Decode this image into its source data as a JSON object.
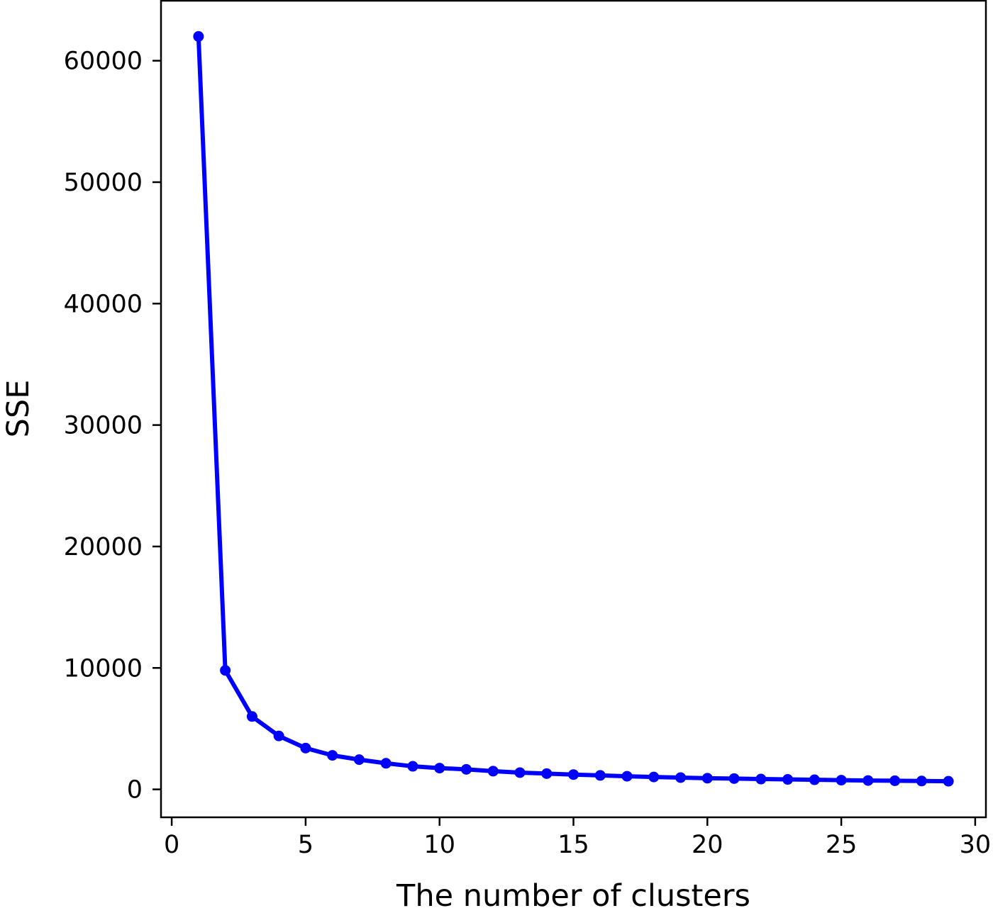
{
  "chart_data": {
    "type": "line",
    "title": "",
    "xlabel": "The number of clusters",
    "ylabel": "SSE",
    "xlim": [
      -0.4,
      30.4
    ],
    "ylim": [
      -2300,
      65000
    ],
    "xticks": [
      0,
      5,
      10,
      15,
      20,
      25,
      30
    ],
    "yticks": [
      0,
      10000,
      20000,
      30000,
      40000,
      50000,
      60000
    ],
    "grid": false,
    "legend": "none",
    "series": [
      {
        "color": "#0000ff",
        "marker": "circle",
        "x": [
          1,
          2,
          3,
          4,
          5,
          6,
          7,
          8,
          9,
          10,
          11,
          12,
          13,
          14,
          15,
          16,
          17,
          18,
          19,
          20,
          21,
          22,
          23,
          24,
          25,
          26,
          27,
          28,
          29
        ],
        "y": [
          62000,
          9800,
          6000,
          4400,
          3400,
          2800,
          2450,
          2150,
          1900,
          1750,
          1650,
          1500,
          1380,
          1300,
          1220,
          1150,
          1080,
          1020,
          970,
          920,
          890,
          850,
          820,
          790,
          760,
          730,
          710,
          690,
          670
        ]
      }
    ]
  }
}
